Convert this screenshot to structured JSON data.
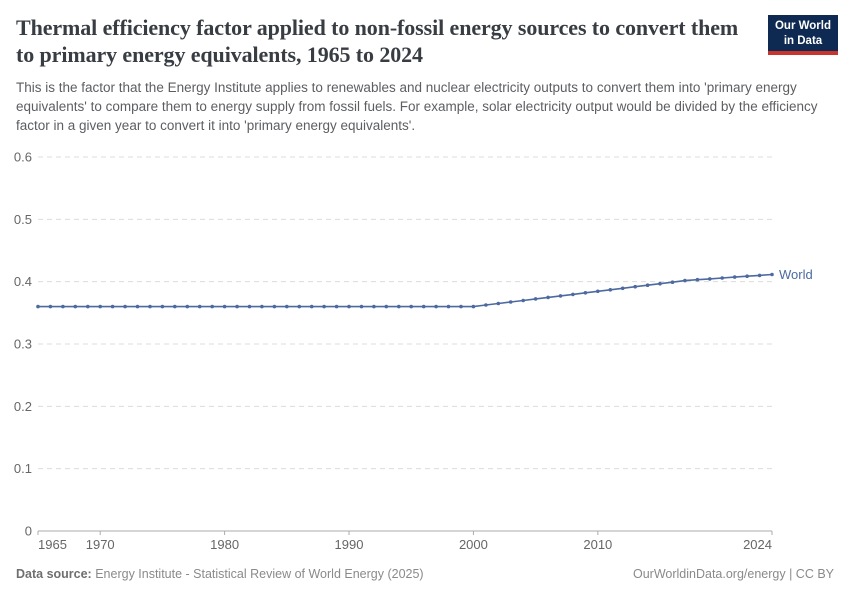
{
  "header": {
    "title": "Thermal efficiency factor applied to non-fossil energy sources to convert them to primary energy equivalents, 1965 to 2024",
    "subtitle": "This is the factor that the Energy Institute applies to renewables and nuclear electricity outputs to convert them into 'primary energy equivalents' to compare them to energy supply from fossil fuels. For example, solar electricity output would be divided by the efficiency factor in a given year to convert it into 'primary energy equivalents'.",
    "logo": {
      "line1": "Our World",
      "line2": "in Data",
      "background_color": "#0e2a52",
      "accent_color": "#c8352c"
    }
  },
  "chart_data": {
    "type": "line",
    "title": "Thermal efficiency factor applied to non-fossil energy sources to convert them to primary energy equivalents, 1965 to 2024",
    "xlabel": "",
    "ylabel": "",
    "xlim": [
      1965,
      2024
    ],
    "ylim": [
      0,
      0.6
    ],
    "x_ticks": [
      1965,
      1970,
      1980,
      1990,
      2000,
      2010,
      2024
    ],
    "y_ticks": [
      0,
      0.1,
      0.2,
      0.3,
      0.4,
      0.5,
      0.6
    ],
    "grid": "horizontal-dashed",
    "legend_position": "end-of-line",
    "colors": {
      "series": "#4c6aa0",
      "gridline": "#dcdcdc",
      "axis": "#ababab",
      "tick_label": "#666666"
    },
    "series": [
      {
        "name": "World",
        "color": "#4c6aa0",
        "x": [
          1965,
          1966,
          1967,
          1968,
          1969,
          1970,
          1971,
          1972,
          1973,
          1974,
          1975,
          1976,
          1977,
          1978,
          1979,
          1980,
          1981,
          1982,
          1983,
          1984,
          1985,
          1986,
          1987,
          1988,
          1989,
          1990,
          1991,
          1992,
          1993,
          1994,
          1995,
          1996,
          1997,
          1998,
          1999,
          2000,
          2001,
          2002,
          2003,
          2004,
          2005,
          2006,
          2007,
          2008,
          2009,
          2010,
          2011,
          2012,
          2013,
          2014,
          2015,
          2016,
          2017,
          2018,
          2019,
          2020,
          2021,
          2022,
          2023,
          2024
        ],
        "values": [
          0.36,
          0.36,
          0.36,
          0.36,
          0.36,
          0.36,
          0.36,
          0.36,
          0.36,
          0.36,
          0.36,
          0.36,
          0.36,
          0.36,
          0.36,
          0.36,
          0.36,
          0.36,
          0.36,
          0.36,
          0.36,
          0.36,
          0.36,
          0.36,
          0.36,
          0.36,
          0.36,
          0.36,
          0.36,
          0.36,
          0.36,
          0.36,
          0.36,
          0.36,
          0.36,
          0.36,
          0.3625,
          0.3649,
          0.3674,
          0.3698,
          0.3723,
          0.3747,
          0.3772,
          0.3796,
          0.3821,
          0.3845,
          0.387,
          0.3894,
          0.3919,
          0.3943,
          0.3968,
          0.3992,
          0.4017,
          0.4031,
          0.4045,
          0.4059,
          0.4073,
          0.4087,
          0.4101,
          0.4115
        ]
      }
    ]
  },
  "footer": {
    "datasource_label": "Data source:",
    "datasource_text": " Energy Institute - Statistical Review of World Energy (2025)",
    "credit": "OurWorldinData.org/energy | CC BY"
  }
}
